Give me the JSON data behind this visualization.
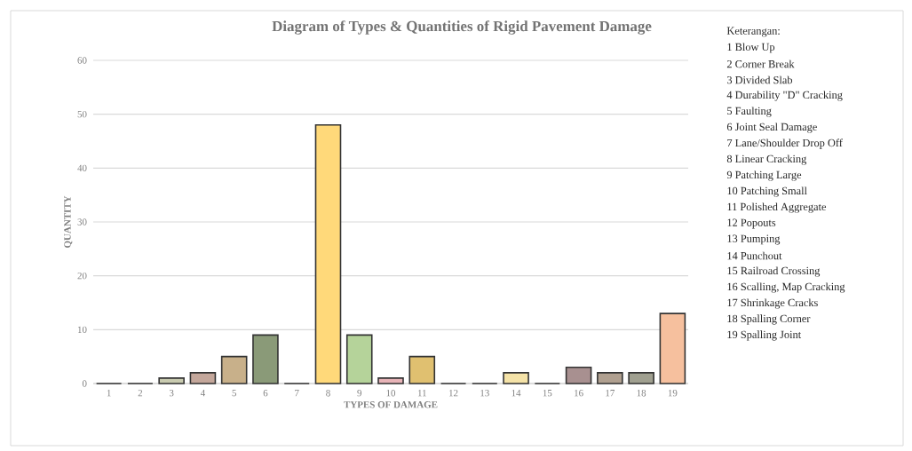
{
  "chart_data": {
    "type": "bar",
    "title": "Diagram of Types & Quantities of Rigid Pavement Damage",
    "xlabel": "TYPES OF DAMAGE",
    "ylabel": "QUANTITY",
    "categories": [
      "1",
      "2",
      "3",
      "4",
      "5",
      "6",
      "7",
      "8",
      "9",
      "10",
      "11",
      "12",
      "13",
      "14",
      "15",
      "16",
      "17",
      "18",
      "19"
    ],
    "values": [
      0,
      0,
      1,
      2,
      5,
      9,
      0,
      48,
      9,
      1,
      5,
      0,
      0,
      2,
      0,
      3,
      2,
      2,
      13
    ],
    "colors": [
      "#cccccc",
      "#cccccc",
      "#c9cbb0",
      "#c4a79b",
      "#c8b08a",
      "#8a9a78",
      "#cccccc",
      "#ffd97a",
      "#b5d39a",
      "#e8b4b8",
      "#e0c070",
      "#cccccc",
      "#cccccc",
      "#f5e3a8",
      "#cccccc",
      "#a89090",
      "#b0a090",
      "#a0a090",
      "#f6c09e"
    ],
    "ylim": [
      0,
      60
    ],
    "yticks": [
      0,
      10,
      20,
      30,
      40,
      50,
      60
    ],
    "grid": "y",
    "annotations": [
      "Keterangan:",
      "1 Blow Up",
      "2 Corner Break",
      "3 Divided Slab",
      "4 Durability \"D\" Cracking",
      "5 Faulting",
      "6 Joint Seal Damage",
      "7 Lane/Shoulder Drop Off",
      "8 Linear Cracking",
      "9 Patching Large",
      "10 Patching Small",
      "11 Polished Aggregate",
      "12 Popouts",
      "13 Pumping",
      "14 Punchout",
      "15 Railroad Crossing",
      "16 Scalling, Map Cracking",
      "17 Shrinkage Cracks",
      "18 Spalling Corner",
      "19 Spalling Joint"
    ]
  }
}
